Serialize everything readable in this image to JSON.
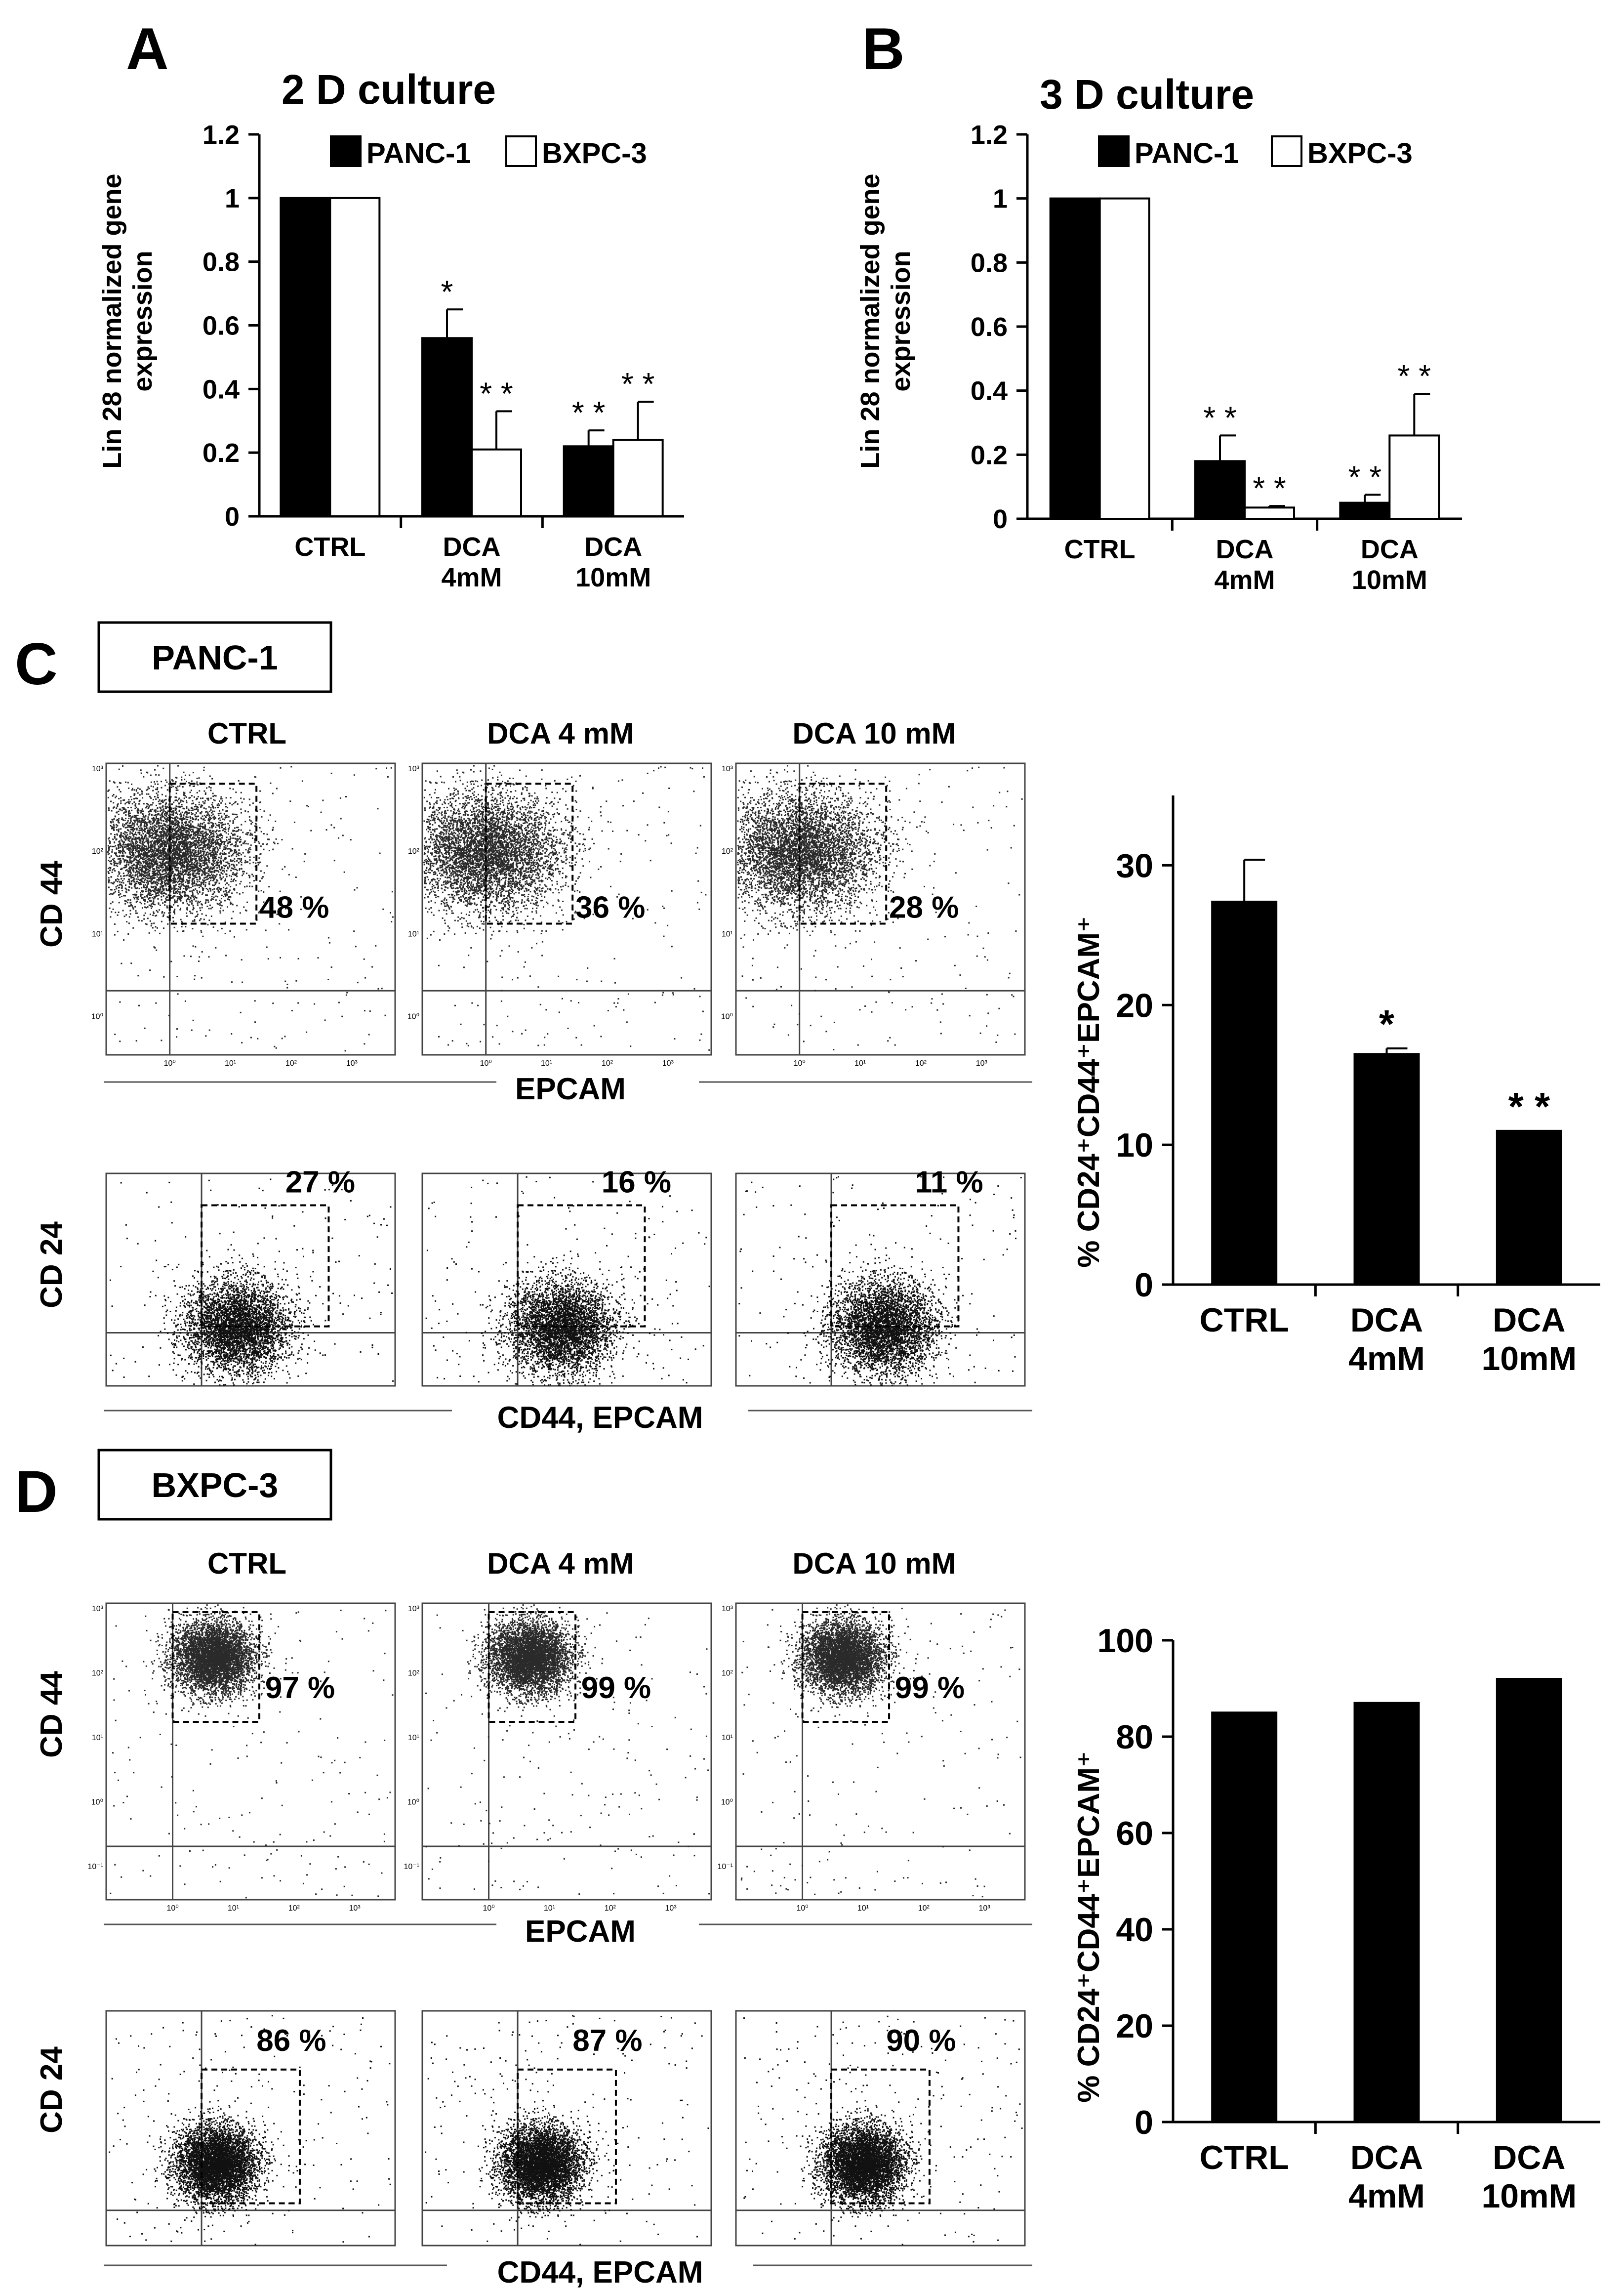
{
  "panels": {
    "A": "A",
    "B": "B",
    "C": "C",
    "D": "D"
  },
  "colors": {
    "panc1": "#000000",
    "bxpc3": "#ffffff",
    "flow_dots": "#2a2a2a",
    "flow_dots_dense": "#111111"
  },
  "bar_axis_ticks": {
    "ab": [
      "0",
      "0.2",
      "0.4",
      "0.6",
      "0.8",
      "1",
      "1.2"
    ],
    "c": [
      "0",
      "10",
      "20",
      "30"
    ],
    "d": [
      "0",
      "20",
      "40",
      "60",
      "80",
      "100"
    ]
  },
  "chart_data": [
    {
      "id": "A",
      "type": "bar",
      "title": "2 D culture",
      "ylabel_line1": "Lin 28 normalized gene",
      "ylabel_line2": "expression",
      "ylim": [
        0,
        1.2
      ],
      "categories": [
        {
          "line1": "CTRL",
          "line2": ""
        },
        {
          "line1": "DCA",
          "line2": "4mM"
        },
        {
          "line1": "DCA",
          "line2": "10mM"
        }
      ],
      "series": [
        {
          "name": "PANC-1",
          "color": "#000000",
          "values": [
            1.0,
            0.56,
            0.22
          ],
          "errors": [
            0,
            0.09,
            0.05
          ],
          "sig": [
            "",
            "*",
            "**"
          ]
        },
        {
          "name": "BXPC-3",
          "color": "#ffffff",
          "values": [
            1.0,
            0.21,
            0.24
          ],
          "errors": [
            0,
            0.12,
            0.12
          ],
          "sig": [
            "",
            "**",
            "**"
          ]
        }
      ]
    },
    {
      "id": "B",
      "type": "bar",
      "title": "3 D culture",
      "ylabel_line1": "Lin 28 normalized gene",
      "ylabel_line2": "expression",
      "ylim": [
        0,
        1.2
      ],
      "categories": [
        {
          "line1": "CTRL",
          "line2": ""
        },
        {
          "line1": "DCA",
          "line2": "4mM"
        },
        {
          "line1": "DCA",
          "line2": "10mM"
        }
      ],
      "series": [
        {
          "name": "PANC-1",
          "color": "#000000",
          "values": [
            1.0,
            0.18,
            0.05
          ],
          "errors": [
            0,
            0.08,
            0.025
          ],
          "sig": [
            "",
            "**",
            "**"
          ]
        },
        {
          "name": "BXPC-3",
          "color": "#ffffff",
          "values": [
            1.0,
            0.035,
            0.26
          ],
          "errors": [
            0,
            0.005,
            0.13
          ],
          "sig": [
            "",
            "**",
            "**"
          ]
        }
      ]
    },
    {
      "id": "C-bar",
      "type": "bar",
      "ylabel": "% CD24⁺CD44⁺EPCAM⁺",
      "ylim": [
        0,
        35
      ],
      "categories": [
        {
          "line1": "CTRL",
          "line2": ""
        },
        {
          "line1": "DCA",
          "line2": "4mM"
        },
        {
          "line1": "DCA",
          "line2": "10mM"
        }
      ],
      "series": [
        {
          "name": "PANC-1",
          "color": "#000000",
          "values": [
            27.4,
            16.5,
            11.0
          ],
          "errors": [
            3.0,
            0.4,
            0
          ],
          "sig": [
            "",
            "*",
            "**"
          ]
        }
      ]
    },
    {
      "id": "D-bar",
      "type": "bar",
      "ylabel": "% CD24⁺CD44⁺EPCAM⁺",
      "ylim": [
        0,
        100
      ],
      "categories": [
        {
          "line1": "CTRL",
          "line2": ""
        },
        {
          "line1": "DCA",
          "line2": "4mM"
        },
        {
          "line1": "DCA",
          "line2": "10mM"
        }
      ],
      "series": [
        {
          "name": "BXPC-3",
          "color": "#000000",
          "values": [
            85,
            87,
            92
          ],
          "errors": [
            0,
            0,
            0
          ],
          "sig": [
            "",
            "",
            ""
          ]
        }
      ]
    }
  ],
  "flow": {
    "C": {
      "cell_line": "PANC-1",
      "conditions": [
        "CTRL",
        "DCA 4 mM",
        "DCA 10 mM"
      ],
      "top_y_axis": "CD 44",
      "top_x_axis": "EPCAM",
      "top_percents": [
        "48 %",
        "36 %",
        "28 %"
      ],
      "bottom_y_axis": "CD 24",
      "bottom_x_axis": "CD44, EPCAM",
      "bottom_percents": [
        "27 %",
        "16 %",
        "11 %"
      ]
    },
    "D": {
      "cell_line": "BXPC-3",
      "conditions": [
        "CTRL",
        "DCA 4 mM",
        "DCA 10 mM"
      ],
      "top_y_axis": "CD 44",
      "top_x_axis": "EPCAM",
      "top_percents": [
        "97 %",
        "99 %",
        "99 %"
      ],
      "bottom_y_axis": "CD 24",
      "bottom_x_axis": "CD44, EPCAM",
      "bottom_percents": [
        "86 %",
        "87 %",
        "90 %"
      ]
    },
    "log_ticks_C": [
      "10³",
      "10²",
      "10¹",
      "10⁰"
    ],
    "log_ticks_D": [
      "10³",
      "10²",
      "10¹",
      "10⁰",
      "10⁻¹"
    ],
    "log_ticks_x": [
      "10⁰",
      "10¹",
      "10²",
      "10³"
    ]
  }
}
